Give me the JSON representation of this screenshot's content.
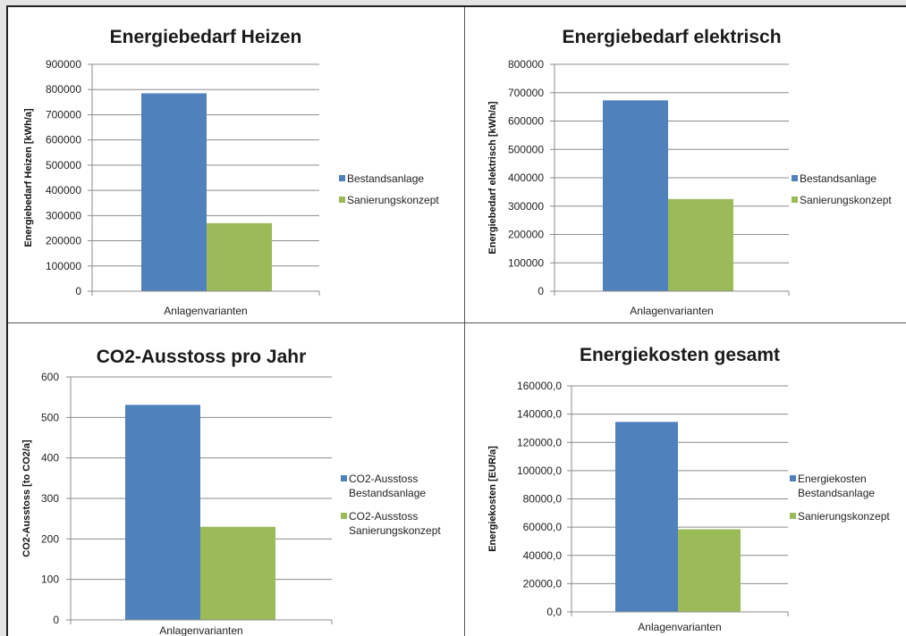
{
  "colors": {
    "blue": "#4f81bd",
    "green": "#9bbb59",
    "grid": "#8c8c8c",
    "axis": "#8c8c8c"
  },
  "chart_data": [
    {
      "id": "heizen",
      "type": "bar",
      "title": "Energiebedarf Heizen",
      "xlabel": "Anlagenvarianten",
      "ylabel": "Energiebedarf Heizen [kWh/a]",
      "categories": [
        "Anlagenvarianten"
      ],
      "ylim": [
        0,
        900000
      ],
      "yticks": [
        0,
        100000,
        200000,
        300000,
        400000,
        500000,
        600000,
        700000,
        800000,
        900000
      ],
      "ytick_labels": [
        "0",
        "100000",
        "200000",
        "300000",
        "400000",
        "500000",
        "600000",
        "700000",
        "800000",
        "900000"
      ],
      "grid": true,
      "legend_position": "right",
      "series": [
        {
          "name": "Bestandsanlage",
          "legend_lines": [
            "Bestandsanlage"
          ],
          "values": [
            785000
          ],
          "color": "#4f81bd"
        },
        {
          "name": "Sanierungskonzept",
          "legend_lines": [
            "Sanierungskonzept"
          ],
          "values": [
            270000
          ],
          "color": "#9bbb59"
        }
      ]
    },
    {
      "id": "elektrisch",
      "type": "bar",
      "title": "Energiebedarf elektrisch",
      "xlabel": "Anlagenvarianten",
      "ylabel": "Energiebedarf elektrisch [kWh/a]",
      "categories": [
        "Anlagenvarianten"
      ],
      "ylim": [
        0,
        800000
      ],
      "yticks": [
        0,
        100000,
        200000,
        300000,
        400000,
        500000,
        600000,
        700000,
        800000
      ],
      "ytick_labels": [
        "0",
        "100000",
        "200000",
        "300000",
        "400000",
        "500000",
        "600000",
        "700000",
        "800000"
      ],
      "grid": true,
      "legend_position": "right",
      "series": [
        {
          "name": "Bestandsanlage",
          "legend_lines": [
            "Bestandsanlage"
          ],
          "values": [
            673000
          ],
          "color": "#4f81bd"
        },
        {
          "name": "Sanierungskonzept",
          "legend_lines": [
            "Sanierungskonzept"
          ],
          "values": [
            325000
          ],
          "color": "#9bbb59"
        }
      ]
    },
    {
      "id": "co2",
      "type": "bar",
      "title": "CO2-Ausstoss pro Jahr",
      "xlabel": "Anlagenvarianten",
      "ylabel": "CO2-Ausstoss [to CO2/a]",
      "categories": [
        "Anlagenvarianten"
      ],
      "ylim": [
        0,
        600
      ],
      "yticks": [
        0,
        100,
        200,
        300,
        400,
        500,
        600
      ],
      "ytick_labels": [
        "0",
        "100",
        "200",
        "300",
        "400",
        "500",
        "600"
      ],
      "grid": true,
      "legend_position": "right",
      "series": [
        {
          "name": "CO2-Ausstoss Bestandsanlage",
          "legend_lines": [
            "CO2-Ausstoss",
            "Bestandsanlage"
          ],
          "values": [
            531
          ],
          "color": "#4f81bd"
        },
        {
          "name": "CO2-Ausstoss Sanierungskonzept",
          "legend_lines": [
            "CO2-Ausstoss",
            "Sanierungskonzept"
          ],
          "values": [
            230
          ],
          "color": "#9bbb59"
        }
      ]
    },
    {
      "id": "kosten",
      "type": "bar",
      "title": "Energiekosten gesamt",
      "xlabel": "Anlagenvarianten",
      "ylabel": "Energiekosten [EUR/a]",
      "categories": [
        "Anlagenvarianten"
      ],
      "ylim": [
        0,
        160000
      ],
      "yticks": [
        0,
        20000,
        40000,
        60000,
        80000,
        100000,
        120000,
        140000,
        160000
      ],
      "ytick_labels": [
        "0,0",
        "20000,0",
        "40000,0",
        "60000,0",
        "80000,0",
        "100000,0",
        "120000,0",
        "140000,0",
        "160000,0"
      ],
      "grid": true,
      "legend_position": "right",
      "series": [
        {
          "name": "Energiekosten Bestandsanlage",
          "legend_lines": [
            "Energiekosten",
            "Bestandsanlage"
          ],
          "values": [
            134500
          ],
          "color": "#4f81bd"
        },
        {
          "name": "Sanierungskonzept",
          "legend_lines": [
            "Sanierungskonzept"
          ],
          "values": [
            58500
          ],
          "color": "#9bbb59"
        }
      ]
    }
  ]
}
